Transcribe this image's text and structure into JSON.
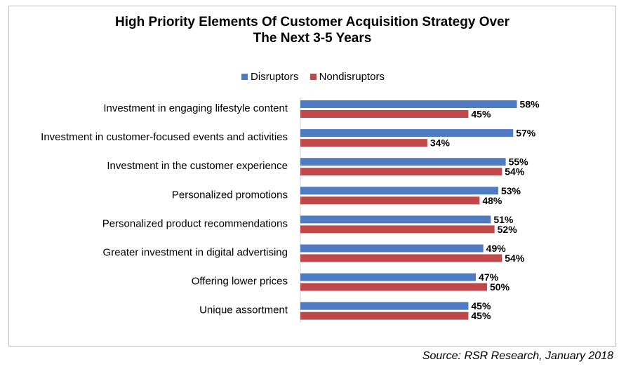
{
  "chart_data": {
    "type": "bar",
    "orientation": "horizontal",
    "title": "High Priority Elements Of Customer Acquisition Strategy Over The Next 3-5 Years",
    "title_lines": [
      "High Priority Elements Of Customer Acquisition Strategy Over",
      "The Next 3-5 Years"
    ],
    "categories": [
      "Investment in engaging lifestyle content",
      "Investment in customer-focused events and activities",
      "Investment in the customer experience",
      "Personalized promotions",
      "Personalized product recommendations",
      "Greater investment in digital advertising",
      "Offering lower prices",
      "Unique assortment"
    ],
    "series": [
      {
        "name": "Disruptors",
        "color": "#4f7bc3",
        "values": [
          58,
          57,
          55,
          53,
          51,
          49,
          47,
          45
        ]
      },
      {
        "name": "Nondisruptors",
        "color": "#c0474a",
        "values": [
          45,
          34,
          54,
          48,
          52,
          54,
          50,
          45
        ]
      }
    ],
    "value_suffix": "%",
    "xlim": [
      0,
      100
    ],
    "grid": false,
    "legend": "top-center",
    "source": "Source: RSR Research, January 2018"
  }
}
